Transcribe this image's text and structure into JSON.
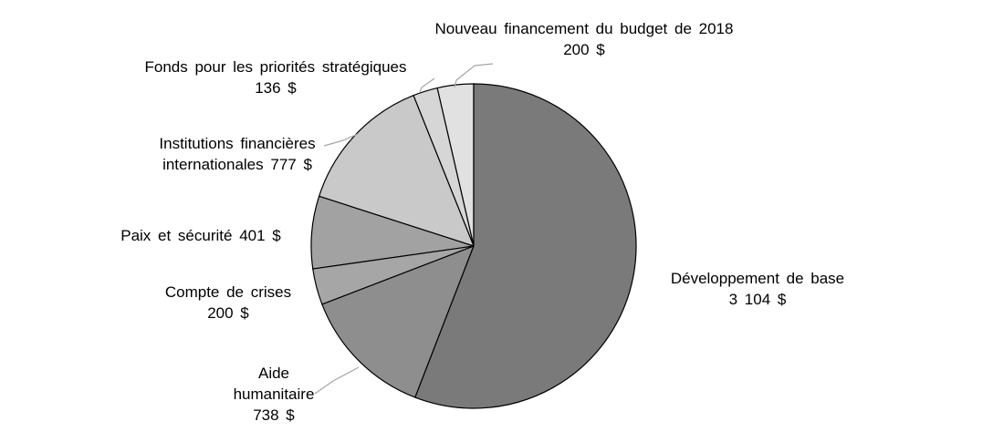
{
  "chart_data": {
    "type": "pie",
    "categories": [
      "Développement de base",
      "Aide humanitaire",
      "Compte de crises",
      "Paix et sécurité",
      "Institutions financières internationales",
      "Fonds pour les priorités stratégiques",
      "Nouveau financement du budget de 2018"
    ],
    "values": [
      3104,
      738,
      200,
      401,
      777,
      136,
      200
    ],
    "value_labels": [
      "3 104 $",
      "738 $",
      "200 $",
      "401 $",
      "777 $",
      "136 $",
      "200 $"
    ],
    "colors": [
      "#7a7a7a",
      "#8e8e8e",
      "#a6a6a6",
      "#a2a2a2",
      "#c9c9c9",
      "#d6d6d6",
      "#e1e1e1"
    ]
  }
}
